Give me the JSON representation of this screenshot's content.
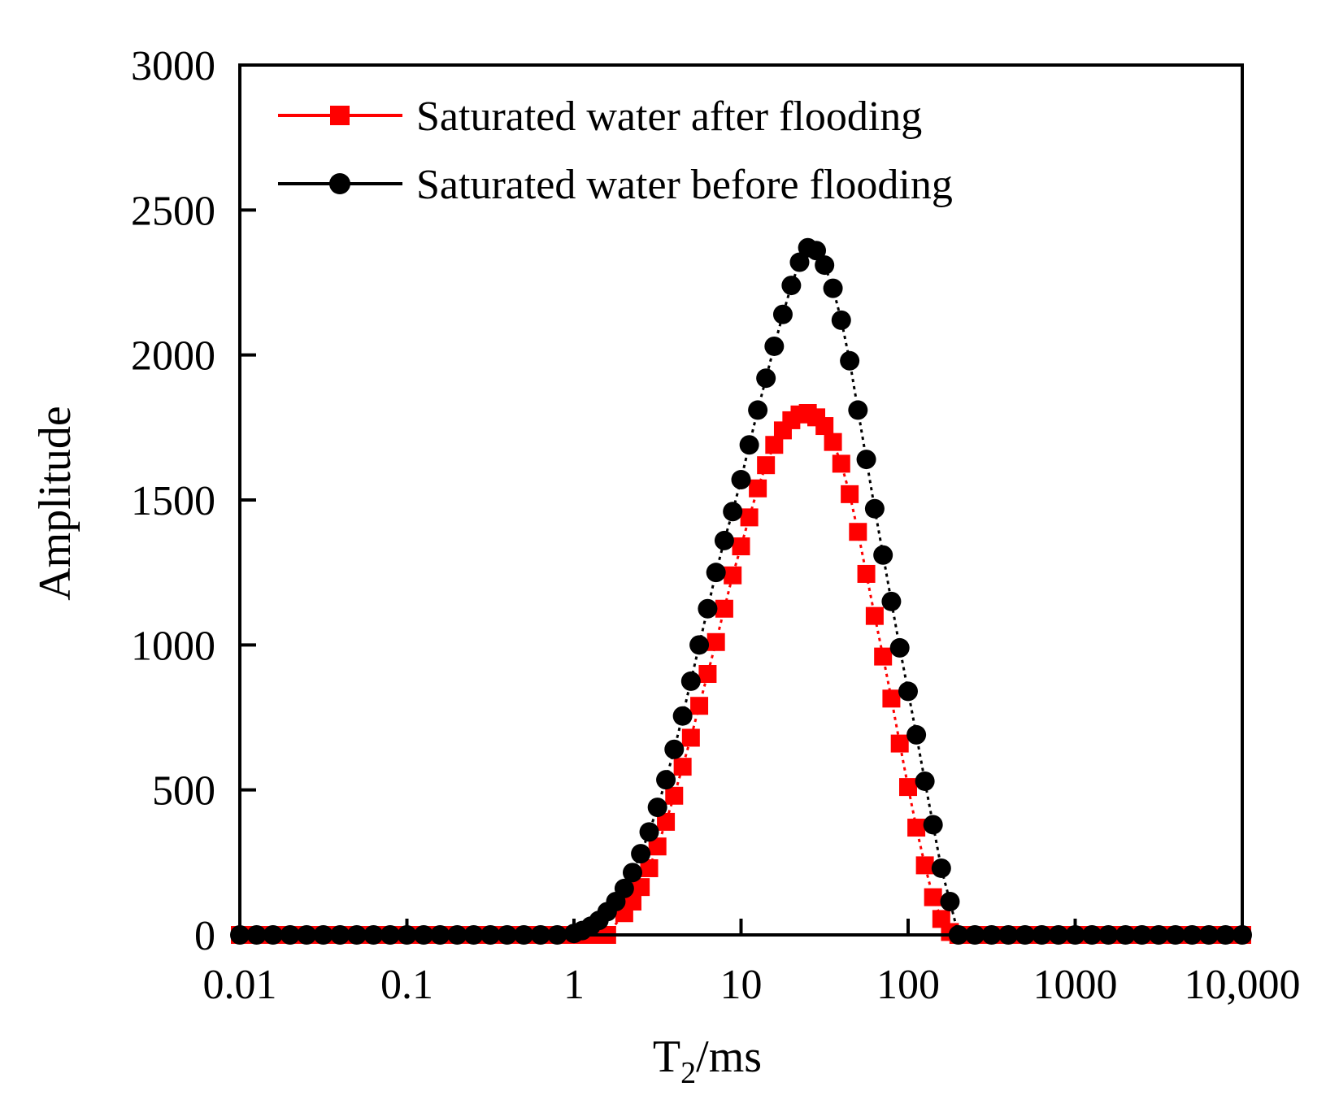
{
  "chart_data": {
    "type": "scatter",
    "title": "",
    "xlabel": "T2/ms",
    "xlabel_main": "T",
    "xlabel_sub": "2",
    "xlabel_unit": "/ms",
    "ylabel": "Amplitude",
    "xscale": "log",
    "xlim": [
      0.01,
      10000
    ],
    "ylim": [
      0,
      3000
    ],
    "x_ticks": [
      0.01,
      0.1,
      1,
      10,
      100,
      1000,
      10000
    ],
    "x_tick_labels": [
      "0.01",
      "0.1",
      "1",
      "10",
      "100",
      "1000",
      "10,000"
    ],
    "y_ticks": [
      0,
      500,
      1000,
      1500,
      2000,
      2500,
      3000
    ],
    "y_tick_labels": [
      "0",
      "500",
      "1000",
      "1500",
      "2000",
      "2500",
      "3000"
    ],
    "grid": false,
    "legend_position": "top-left",
    "colors": {
      "after": "#ff0000",
      "before": "#000000"
    },
    "series": [
      {
        "name": "Saturated water after flooding",
        "marker": "square",
        "color": "#ff0000",
        "x": [
          0.01,
          0.0126,
          0.0158,
          0.02,
          0.0251,
          0.0316,
          0.0398,
          0.0501,
          0.0631,
          0.0794,
          0.1,
          0.126,
          0.158,
          0.2,
          0.251,
          0.316,
          0.398,
          0.501,
          0.631,
          0.794,
          1.0,
          1.26,
          1.58,
          2.0,
          2.24,
          2.51,
          2.82,
          3.16,
          3.55,
          3.98,
          4.47,
          5.01,
          5.62,
          6.31,
          7.08,
          7.94,
          8.91,
          10.0,
          11.2,
          12.6,
          14.1,
          15.8,
          17.8,
          20.0,
          22.4,
          25.1,
          28.2,
          31.6,
          35.5,
          39.8,
          44.7,
          50.1,
          56.2,
          63.1,
          70.8,
          79.4,
          89.1,
          100,
          112,
          126,
          141,
          158,
          178,
          200,
          251,
          316,
          398,
          501,
          631,
          794,
          1000,
          1260,
          1580,
          2000,
          2510,
          3160,
          3980,
          5010,
          6310,
          7940,
          10000
        ],
        "values": [
          0,
          0,
          0,
          0,
          0,
          0,
          0,
          0,
          0,
          0,
          0,
          0,
          0,
          0,
          0,
          0,
          0,
          0,
          0,
          0,
          0,
          0,
          0,
          75,
          115,
          165,
          230,
          305,
          390,
          480,
          580,
          680,
          790,
          900,
          1010,
          1125,
          1240,
          1340,
          1440,
          1540,
          1620,
          1690,
          1740,
          1775,
          1795,
          1800,
          1785,
          1755,
          1700,
          1625,
          1520,
          1390,
          1245,
          1100,
          960,
          815,
          660,
          510,
          370,
          240,
          130,
          55,
          10,
          0,
          0,
          0,
          0,
          0,
          0,
          0,
          0,
          0,
          0,
          0,
          0,
          0,
          0,
          0,
          0,
          0,
          0
        ]
      },
      {
        "name": "Saturated water before flooding",
        "marker": "circle",
        "color": "#000000",
        "x": [
          0.01,
          0.0126,
          0.0158,
          0.02,
          0.0251,
          0.0316,
          0.0398,
          0.0501,
          0.0631,
          0.0794,
          0.1,
          0.126,
          0.158,
          0.2,
          0.251,
          0.316,
          0.398,
          0.501,
          0.631,
          0.794,
          1.0,
          1.12,
          1.26,
          1.41,
          1.58,
          1.78,
          2.0,
          2.24,
          2.51,
          2.82,
          3.16,
          3.55,
          3.98,
          4.47,
          5.01,
          5.62,
          6.31,
          7.08,
          7.94,
          8.91,
          10.0,
          11.2,
          12.6,
          14.1,
          15.8,
          17.8,
          20.0,
          22.4,
          25.1,
          28.2,
          31.6,
          35.5,
          39.8,
          44.7,
          50.1,
          56.2,
          63.1,
          70.8,
          79.4,
          89.1,
          100,
          112,
          126,
          141,
          158,
          178,
          200,
          251,
          316,
          398,
          501,
          631,
          794,
          1000,
          1260,
          1580,
          2000,
          2510,
          3160,
          3980,
          5010,
          6310,
          7940,
          10000
        ],
        "values": [
          0,
          0,
          0,
          0,
          0,
          0,
          0,
          0,
          0,
          0,
          0,
          0,
          0,
          0,
          0,
          0,
          0,
          0,
          0,
          0,
          5,
          15,
          30,
          50,
          80,
          115,
          160,
          215,
          280,
          355,
          440,
          535,
          640,
          755,
          875,
          1000,
          1125,
          1250,
          1360,
          1460,
          1570,
          1690,
          1810,
          1920,
          2030,
          2140,
          2240,
          2320,
          2370,
          2360,
          2310,
          2230,
          2120,
          1980,
          1810,
          1640,
          1470,
          1310,
          1150,
          990,
          840,
          690,
          530,
          380,
          230,
          115,
          0,
          0,
          0,
          0,
          0,
          0,
          0,
          0,
          0,
          0,
          0,
          0,
          0,
          0,
          0,
          0,
          0,
          0
        ]
      }
    ]
  }
}
